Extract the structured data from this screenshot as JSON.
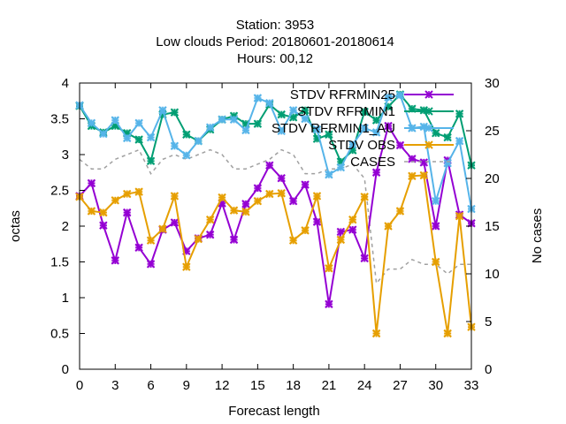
{
  "chart_data": {
    "type": "line",
    "title": [
      "Station:      3953",
      "Low clouds   Period: 20180601-20180614",
      "Hours:  00,12"
    ],
    "xlabel": "Forecast length",
    "ylabel": "octas",
    "y2label": "No cases",
    "xlim": [
      0,
      33
    ],
    "ylim": [
      0,
      4
    ],
    "y2lim": [
      0,
      30
    ],
    "xticks": [
      "0",
      "3",
      "6",
      "9",
      "12",
      "15",
      "18",
      "21",
      "24",
      "27",
      "30",
      "33"
    ],
    "xtick_values": [
      0,
      3,
      6,
      9,
      12,
      15,
      18,
      21,
      24,
      27,
      30,
      33
    ],
    "yticks": [
      "0",
      "0.5",
      "1",
      "1.5",
      "2",
      "2.5",
      "3",
      "3.5",
      "4"
    ],
    "ytick_values": [
      0,
      0.5,
      1,
      1.5,
      2,
      2.5,
      3,
      3.5,
      4
    ],
    "y2ticks": [
      "0",
      "5",
      "10",
      "15",
      "20",
      "25",
      "30"
    ],
    "y2tick_values": [
      0,
      5,
      10,
      15,
      20,
      25,
      30
    ],
    "grid": false,
    "legend_position": "top-right",
    "x": [
      0,
      1,
      2,
      3,
      4,
      5,
      6,
      7,
      8,
      9,
      10,
      11,
      12,
      13,
      14,
      15,
      16,
      17,
      18,
      19,
      20,
      21,
      22,
      23,
      24,
      25,
      26,
      27,
      28,
      29,
      30,
      31,
      32,
      33
    ],
    "series": [
      {
        "name": "STDV RFRMIN25",
        "color": "#9400d3",
        "axis": "y1",
        "marker": "x",
        "dashed": false,
        "values": [
          2.42,
          2.6,
          2.01,
          1.52,
          2.19,
          1.7,
          1.47,
          1.95,
          2.05,
          1.65,
          1.83,
          1.88,
          2.32,
          1.81,
          2.31,
          2.53,
          2.85,
          2.67,
          2.35,
          2.58,
          2.06,
          0.91,
          1.92,
          1.95,
          1.55,
          2.75,
          3.4,
          3.13,
          2.94,
          2.89,
          2.0,
          2.92,
          2.16,
          2.04
        ]
      },
      {
        "name": "STDV RFRMIN1",
        "color": "#009e73",
        "axis": "y1",
        "marker": "x",
        "dashed": false,
        "values": [
          3.68,
          3.4,
          3.31,
          3.4,
          3.3,
          3.21,
          2.91,
          3.56,
          3.59,
          3.28,
          3.19,
          3.35,
          3.49,
          3.54,
          3.43,
          3.43,
          3.7,
          3.56,
          3.52,
          3.62,
          3.22,
          3.28,
          2.9,
          3.06,
          3.6,
          3.48,
          3.67,
          3.84,
          3.64,
          3.62,
          3.3,
          3.24,
          3.57,
          2.85
        ]
      },
      {
        "name": "STDV RFRMIN1_AU",
        "color": "#56b4e9",
        "axis": "y1",
        "marker": "x",
        "dashed": false,
        "values": [
          3.69,
          3.44,
          3.29,
          3.48,
          3.23,
          3.44,
          3.24,
          3.62,
          3.12,
          2.99,
          3.19,
          3.38,
          3.49,
          3.49,
          3.34,
          3.79,
          3.72,
          3.33,
          3.62,
          3.5,
          3.35,
          2.72,
          2.82,
          3.14,
          3.37,
          3.31,
          3.8,
          3.83,
          3.37,
          3.39,
          2.35,
          2.88,
          3.19,
          2.24
        ]
      },
      {
        "name": "STDV OBS",
        "color": "#e69f00",
        "axis": "y1",
        "marker": "x",
        "dashed": false,
        "values": [
          2.41,
          2.21,
          2.19,
          2.36,
          2.45,
          2.48,
          1.8,
          1.96,
          2.42,
          1.43,
          1.82,
          2.09,
          2.4,
          2.22,
          2.2,
          2.35,
          2.45,
          2.46,
          1.8,
          1.94,
          2.42,
          1.41,
          1.81,
          2.09,
          2.41,
          0.5,
          2.0,
          2.21,
          2.7,
          2.71,
          1.5,
          0.5,
          2.14,
          0.59
        ]
      },
      {
        "name": "CASES",
        "color": "#a0a0a0",
        "axis": "y2",
        "marker": "none",
        "dashed": true,
        "values": [
          22.0,
          21.0,
          21.0,
          22.0,
          22.5,
          23.0,
          20.5,
          22.0,
          22.5,
          22.0,
          22.5,
          23.0,
          22.5,
          21.0,
          21.0,
          21.5,
          22.0,
          23.0,
          22.5,
          20.5,
          20.5,
          21.0,
          21.0,
          21.5,
          20.0,
          9.0,
          10.5,
          10.5,
          11.5,
          11.0,
          11.0,
          10.0,
          11.0,
          11.0
        ]
      }
    ]
  }
}
